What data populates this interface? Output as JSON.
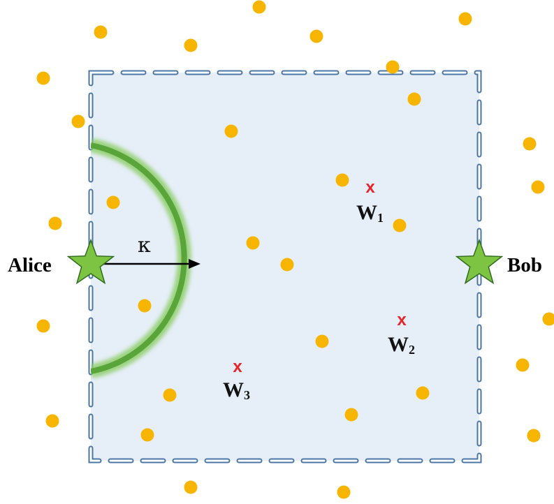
{
  "nodes": {
    "alice": {
      "label": "Alice"
    },
    "bob": {
      "label": "Bob"
    }
  },
  "radius_label": "κ",
  "wardens": [
    {
      "mark": "x",
      "label": "W",
      "sub": "1"
    },
    {
      "mark": "x",
      "label": "W",
      "sub": "2"
    },
    {
      "mark": "x",
      "label": "W",
      "sub": "3"
    }
  ],
  "colors": {
    "region_fill": "#e6eef8",
    "region_border": "#4a77a6",
    "dot": "#f7b500",
    "star": "#7dc443",
    "ring": "#5aa53a",
    "warden": "#e8252b"
  }
}
